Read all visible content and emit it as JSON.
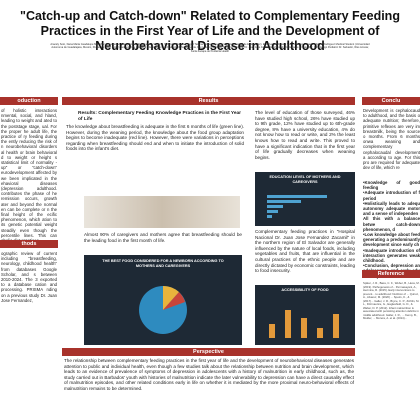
{
  "header": {
    "title": "\"Catch-up and Catch-down\" Related to Complementary Feeding Practices in the First Year of Life and the Development of Neurobehavioral Disease in Adulthood",
    "authors": "Aracely Soto, Iliana Maria Guadalupe MD, MSc (Universidad Evangelica de El Salvador), Susan L. Melendez Ramirez, Ingrid Tatiana Gomez Figueroa MD (Universidad de El Salvador), El Salvador, Rosalia Sosa; Rodrigo Edgardo Melara Rodriguez Medical Student (Universidad Autonoma de Guadalajara, Mexico, Pediatrics, Jose P HIE); Sociedad de Pediatria; Diego Moreno (University of Pennsylvania, Penn Medicine, USA); Hospital Nacional Dr. Juan Jose Fernandez Zacamil; Pediatria de El Salvador; Nino Amigo Pediatric Dr. Salvador, Wes Acosta; Karla Zacapa de Pediatria Health"
  },
  "introduction": {
    "heading": "oduction",
    "text": "of holistic interactions nmental, social, and hland, leading to weight and ated to the poststage stage, ual. For the proper he adult life, the practice of ry feeding during the ently reducing the risk of n neurobehavioral disorders al health or brain behavioral d to weight or height s statistical limit of normality -up\" or \"catch-down\" eurodevelopment affected by we been implicated in the ehavioral diseases (depression adulthood. contributes the phase of he remission occurs, growth ater and beyond the normal en can be complete or n the final height of the ecific phenomenon, which ation to its genetic potential weight steadily even though the percentile lines. This can abolic diet practices."
  },
  "methods": {
    "heading": "thods",
    "text": "ographic review of current including \"breastfeeding, neurology, childhood health\" from databases Google Scholar, and s between 2010-2024. The 3 exported to a database cation and processing. PRISMA nding on a previous study Dr. Juan Jose Fernandez,"
  },
  "results": {
    "heading": "Results",
    "subtitle": "Results: Complementary Feeding Knowledge Practices in the First Year of Life",
    "text1": "The knowledge about breastfeeding is adequate in the first 6 months of life (green line). However, during the weaning period, the knowledge about the food group adaptation begins to become inadequate (red line). However, there were variations in perceptions regarding when breastfeeding should end and when to initiate the introduction of solid foods into the infant's diet.",
    "text2": "Almost 90% of caregivers and mothers agree that breastfeeding should be the leading food in the first month of life.",
    "fig_food": "THE BEST FOOD CONSIDERED FOR A NEWBORN ACCORDING TO MOTHERS AND CAREGIVERS",
    "text3": "The level of education of those surveyed, 46% have studied high school, 26% have studied up to 9th grade, 12% have studied up to 6th-grade degree, 8% have a university education, 4% do not know how to read or write, and 2% the least knows how to read and write. This proved to have a significant indication that in the first year of life gradually decreases when weaning begins.",
    "fig_edu": "EDUCATION LEVEL OF MOTHERS AND CAREGIVERS",
    "text4": "Complementary feeding practices in \"Hospital Nacional Dr. Juan Jose Fernandez Zacamil\" in the northern region of El Salvador are generally influenced by the nature of local foods, including vegetables and fruits, that are influential in the cultural practices of the ethnic people and are directly dictated by economic constraints, leading to food insecurity.",
    "fig_access": "ACCESSIBILITY OF FOOD"
  },
  "perspective": {
    "heading": "Perspective",
    "text": "The relationship between complementary feeding practices in the first year of life and the development of neurobehavioral diseases generates attention to public and individual health, even though a few studies talk about the relationship between nutrition and brain development, which leads to an evidence of prevalence of symptoms of depression in adolescents with a history of malnutrition in early childhood, such as, the study carried out in Barbados' youth with histories of malnutrition indicate the later vulnerability to depression can have a direct causality effect of malnutrition episodes, and other related conditions early in life on whether it is mediated by the more proximal neuro-behavioral effects of malnutrition remains to be determined."
  },
  "conclusions": {
    "heading": "Conclu",
    "text": "Development is cephalocaud to adulthood, and the basis o adequate nutrition; therefore, primitive reflexes are very im breastmilk, being the source o months. From 6 months onwa weaning and complementary cephalocaudal development a according to age. For this pro are required for adequate dev of life, which re",
    "items": [
      "•Knowledge of good feeding",
      "•Adequate introduction of f period",
      "•Holistically leads to adequ autonomy adequate motor and a sense of independen",
      "All this with a balance betwe catch-down phenomenon, d",
      "•Low knowledge about feed generating a predominantly development since early ch",
      "•Inadequate introduction of interaction generates weak childhood.",
      "•Conclusion, depression an adolescence and early adu development of chronic dis"
    ]
  },
  "references": {
    "heading": "Reference",
    "text": "Spiker, J. R., Bass, C. F., Weber, B., Hess, M. (2019). Pathogenesis of... Permasayani, A., Hermina, R. (2015). Early interventions to prevent... to adulthood: Nutrition of ... Quiroz, A., Alvarez, M. (2020) ... Speirs, K., & (2017)... Galler, J. R., Bryce, C. P., Zichlin, M. L., Fitzmaurice, G., Eaglesfield, G. D., & Waber, D. P. (2012). Infant malnutrition is associated with persisting attention deficits in middle adulthood. Galler, J. R., ... Kemp, B., Mulder, ... Morera, A. et al. (2014)..."
  }
}
